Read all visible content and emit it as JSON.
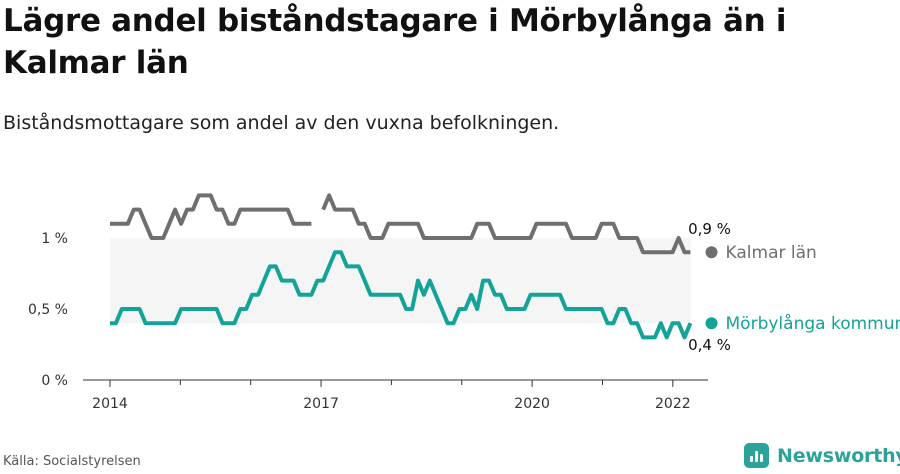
{
  "title": "Lägre andel biståndstagare i Mörbylånga än i Kalmar län",
  "subtitle": "Biståndsmottagare som andel av den vuxna befolkningen.",
  "source": "Källa: Socialstyrelsen",
  "brand": "Newsworthy",
  "colors": {
    "kalmar": "#6f6f71",
    "morbylanga": "#14a399",
    "brand": "#2ba39a",
    "band": "#f5f5f5"
  },
  "chart_data": {
    "type": "line",
    "xlim": [
      2014,
      2022.5
    ],
    "ylim": [
      0,
      1.4
    ],
    "y_ticks": [
      {
        "value": 0,
        "label": "0 %"
      },
      {
        "value": 0.5,
        "label": "0,5 %"
      },
      {
        "value": 1,
        "label": "1 %"
      }
    ],
    "x_ticks": [
      {
        "value": 2014,
        "label": "2014"
      },
      {
        "value": 2017,
        "label": "2017"
      },
      {
        "value": 2020,
        "label": "2020"
      },
      {
        "value": 2022,
        "label": "2022"
      }
    ],
    "x_minor_ticks": [
      2015,
      2016,
      2018,
      2019,
      2021
    ],
    "series": [
      {
        "name": "Kalmar län",
        "end_label": "0,9 %",
        "values": [
          1.1,
          1.1,
          1.1,
          1.1,
          1.2,
          1.2,
          1.1,
          1.0,
          1.0,
          1.0,
          1.1,
          1.2,
          1.1,
          1.2,
          1.2,
          1.3,
          1.3,
          1.3,
          1.2,
          1.2,
          1.1,
          1.1,
          1.2,
          1.2,
          1.2,
          1.2,
          1.2,
          1.2,
          1.2,
          1.2,
          1.2,
          1.1,
          1.1,
          1.1,
          1.1,
          null,
          1.2,
          1.3,
          1.2,
          1.2,
          1.2,
          1.2,
          1.1,
          1.1,
          1.0,
          1.0,
          1.0,
          1.1,
          1.1,
          1.1,
          1.1,
          1.1,
          1.1,
          1.0,
          1.0,
          1.0,
          1.0,
          1.0,
          1.0,
          1.0,
          1.0,
          1.0,
          1.1,
          1.1,
          1.1,
          1.0,
          1.0,
          1.0,
          1.0,
          1.0,
          1.0,
          1.0,
          1.1,
          1.1,
          1.1,
          1.1,
          1.1,
          1.1,
          1.0,
          1.0,
          1.0,
          1.0,
          1.0,
          1.1,
          1.1,
          1.1,
          1.0,
          1.0,
          1.0,
          1.0,
          0.9,
          0.9,
          0.9,
          0.9,
          0.9,
          0.9,
          1.0,
          0.9,
          0.9
        ]
      },
      {
        "name": "Mörbylånga kommun",
        "end_label": "0,4 %",
        "values": [
          0.4,
          0.4,
          0.5,
          0.5,
          0.5,
          0.5,
          0.4,
          0.4,
          0.4,
          0.4,
          0.4,
          0.4,
          0.5,
          0.5,
          0.5,
          0.5,
          0.5,
          0.5,
          0.5,
          0.4,
          0.4,
          0.4,
          0.5,
          0.5,
          0.6,
          0.6,
          0.7,
          0.8,
          0.8,
          0.7,
          0.7,
          0.7,
          0.6,
          0.6,
          0.6,
          0.7,
          0.7,
          0.8,
          0.9,
          0.9,
          0.8,
          0.8,
          0.8,
          0.7,
          0.6,
          0.6,
          0.6,
          0.6,
          0.6,
          0.6,
          0.5,
          0.5,
          0.7,
          0.6,
          0.7,
          0.6,
          0.5,
          0.4,
          0.4,
          0.5,
          0.5,
          0.6,
          0.5,
          0.7,
          0.7,
          0.6,
          0.6,
          0.5,
          0.5,
          0.5,
          0.5,
          0.6,
          0.6,
          0.6,
          0.6,
          0.6,
          0.6,
          0.5,
          0.5,
          0.5,
          0.5,
          0.5,
          0.5,
          0.5,
          0.4,
          0.4,
          0.5,
          0.5,
          0.4,
          0.4,
          0.3,
          0.3,
          0.3,
          0.4,
          0.3,
          0.4,
          0.4,
          0.3,
          0.4
        ]
      }
    ]
  }
}
